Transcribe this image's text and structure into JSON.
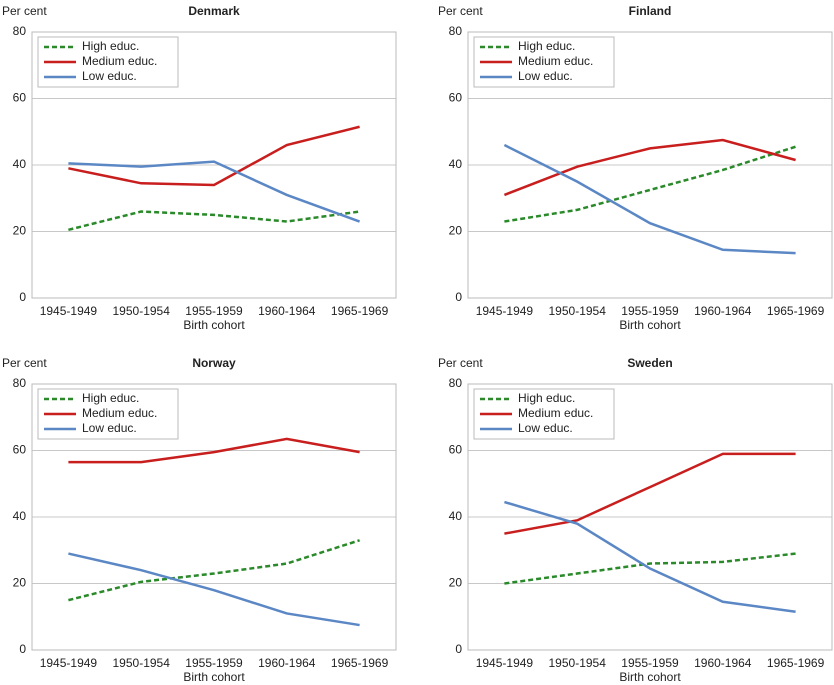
{
  "chart_data": [
    {
      "type": "line",
      "title": "Denmark",
      "ylabel": "Per cent",
      "xlabel": "Birth cohort",
      "categories": [
        "1945-1949",
        "1950-1954",
        "1955-1959",
        "1960-1964",
        "1965-1969"
      ],
      "ylim": [
        0,
        80
      ],
      "yticks": [
        0,
        20,
        40,
        60,
        80
      ],
      "grid": true,
      "legend": "upper left",
      "series": [
        {
          "name": "High educ.",
          "color": "#2a8a2a",
          "style": "dashed",
          "values": [
            20.5,
            26,
            25,
            23,
            26
          ]
        },
        {
          "name": "Medium educ.",
          "color": "#c81e1e",
          "style": "solid",
          "values": [
            39,
            34.5,
            34,
            46,
            51.5
          ]
        },
        {
          "name": "Low educ.",
          "color": "#5b87c5",
          "style": "solid",
          "values": [
            40.5,
            39.5,
            41,
            31,
            23
          ]
        }
      ]
    },
    {
      "type": "line",
      "title": "Finland",
      "ylabel": "Per cent",
      "xlabel": "Birth cohort",
      "categories": [
        "1945-1949",
        "1950-1954",
        "1955-1959",
        "1960-1964",
        "1965-1969"
      ],
      "ylim": [
        0,
        80
      ],
      "yticks": [
        0,
        20,
        40,
        60,
        80
      ],
      "grid": true,
      "legend": "upper left",
      "series": [
        {
          "name": "High educ.",
          "color": "#2a8a2a",
          "style": "dashed",
          "values": [
            23,
            26.5,
            32.5,
            38.5,
            45.5
          ]
        },
        {
          "name": "Medium educ.",
          "color": "#c81e1e",
          "style": "solid",
          "values": [
            31,
            39.5,
            45,
            47.5,
            41.5
          ]
        },
        {
          "name": "Low educ.",
          "color": "#5b87c5",
          "style": "solid",
          "values": [
            46,
            35,
            22.5,
            14.5,
            13.5
          ]
        }
      ]
    },
    {
      "type": "line",
      "title": "Norway",
      "ylabel": "Per cent",
      "xlabel": "Birth cohort",
      "categories": [
        "1945-1949",
        "1950-1954",
        "1955-1959",
        "1960-1964",
        "1965-1969"
      ],
      "ylim": [
        0,
        80
      ],
      "yticks": [
        0,
        20,
        40,
        60,
        80
      ],
      "grid": true,
      "legend": "upper left",
      "series": [
        {
          "name": "High educ.",
          "color": "#2a8a2a",
          "style": "dashed",
          "values": [
            15,
            20.5,
            23,
            26,
            33
          ]
        },
        {
          "name": "Medium educ.",
          "color": "#c81e1e",
          "style": "solid",
          "values": [
            56.5,
            56.5,
            59.5,
            63.5,
            59.5
          ]
        },
        {
          "name": "Low educ.",
          "color": "#5b87c5",
          "style": "solid",
          "values": [
            29,
            24,
            18,
            11,
            7.5
          ]
        }
      ]
    },
    {
      "type": "line",
      "title": "Sweden",
      "ylabel": "Per cent",
      "xlabel": "Birth cohort",
      "categories": [
        "1945-1949",
        "1950-1954",
        "1955-1959",
        "1960-1964",
        "1965-1969"
      ],
      "ylim": [
        0,
        80
      ],
      "yticks": [
        0,
        20,
        40,
        60,
        80
      ],
      "grid": true,
      "legend": "upper left",
      "series": [
        {
          "name": "High educ.",
          "color": "#2a8a2a",
          "style": "dashed",
          "values": [
            20,
            23,
            26,
            26.5,
            29
          ]
        },
        {
          "name": "Medium educ.",
          "color": "#c81e1e",
          "style": "solid",
          "values": [
            35,
            39,
            49,
            59,
            59
          ]
        },
        {
          "name": "Low educ.",
          "color": "#5b87c5",
          "style": "solid",
          "values": [
            44.5,
            38,
            24.5,
            14.5,
            11.5
          ]
        }
      ]
    }
  ]
}
